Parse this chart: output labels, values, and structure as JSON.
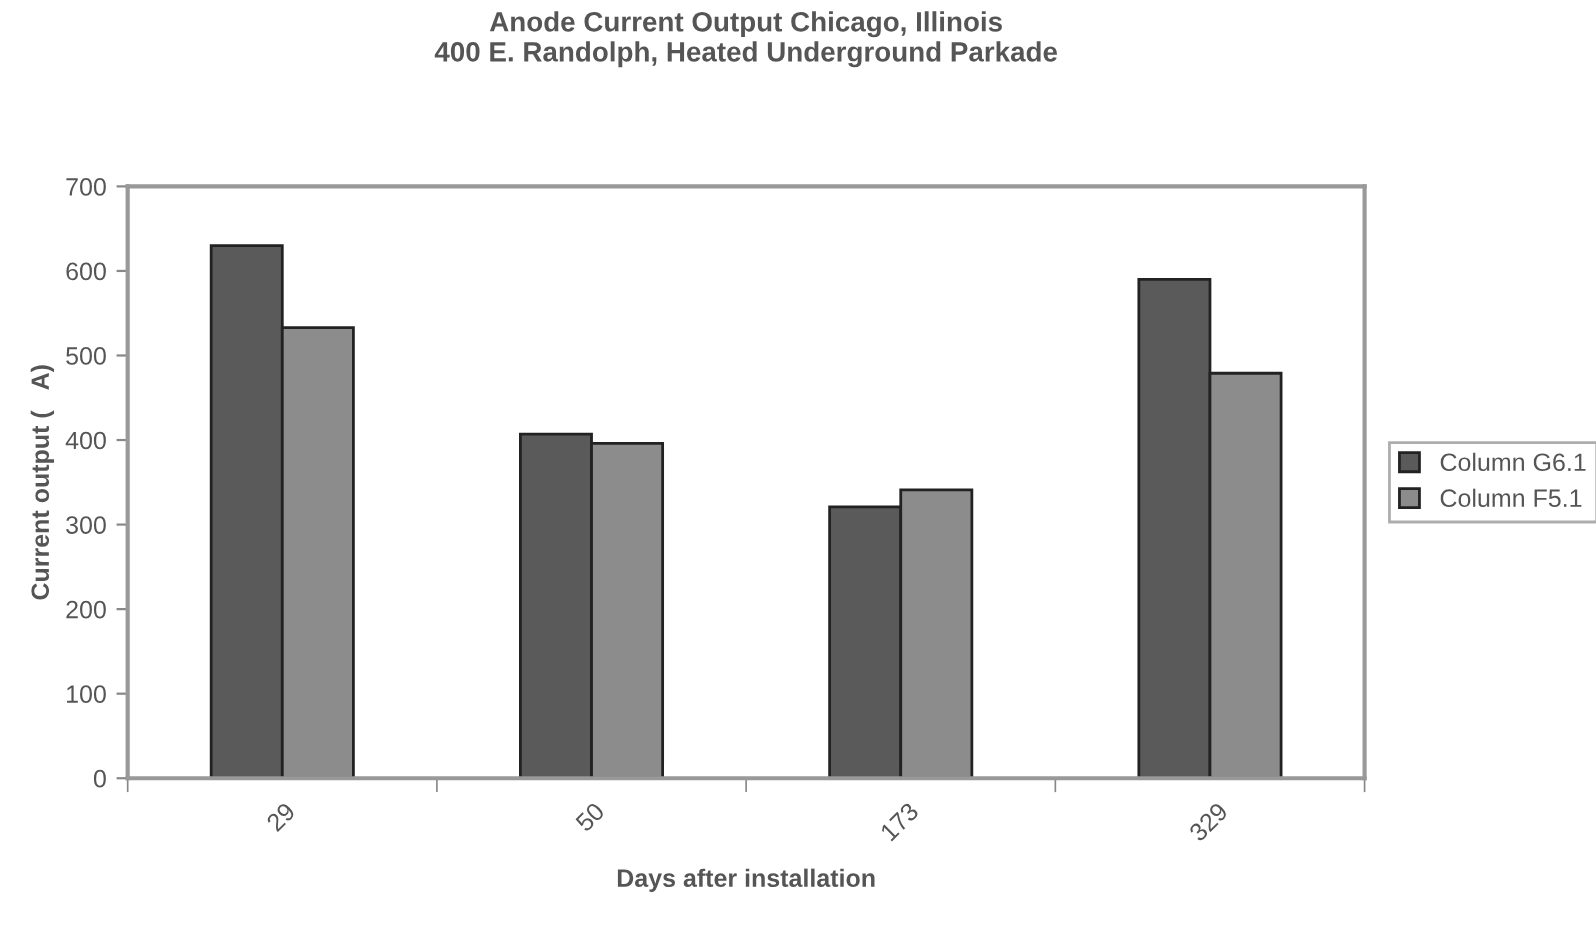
{
  "chart_data": {
    "type": "bar",
    "title": "Anode Current Output Chicago, Illinois\n400 E. Randolph, Heated Underground Parkade",
    "xlabel": "Days after installation",
    "ylabel": "Current output (   A)",
    "categories": [
      "29",
      "50",
      "173",
      "329"
    ],
    "series": [
      {
        "name": "Column G6.1",
        "color": "#5a5a5a",
        "values": [
          630,
          407,
          321,
          590
        ]
      },
      {
        "name": "Column F5.1",
        "color": "#8c8c8c",
        "values": [
          533,
          396,
          341,
          479
        ]
      }
    ],
    "ylim": [
      0,
      700
    ],
    "yticks": [
      0,
      100,
      200,
      300,
      400,
      500,
      600,
      700
    ],
    "grid": false,
    "legend": "right"
  }
}
